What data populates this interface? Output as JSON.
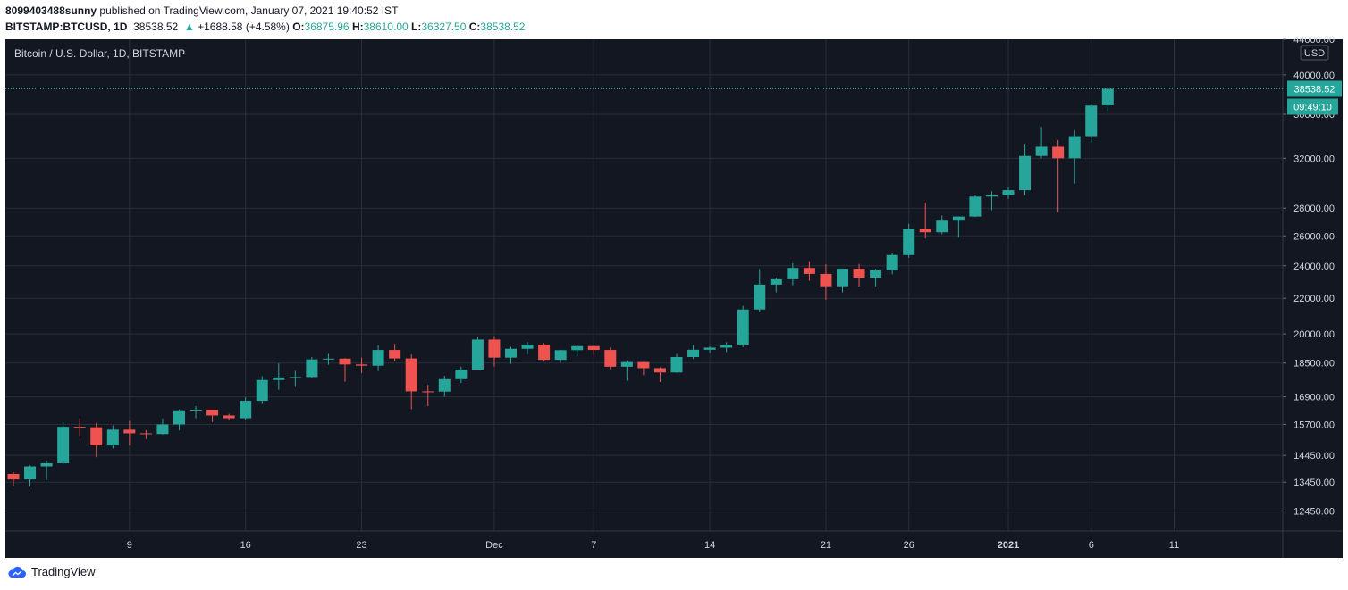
{
  "header": {
    "author": "8099403488sunny",
    "published_text": " published on TradingView.com, January 07, 2021 19:40:52 IST",
    "symbol": "BITSTAMP:BTCUSD, 1D",
    "last": "38538.52",
    "change_arrow": "▲",
    "change": "+1688.58 (+4.58%)",
    "o_label": "O:",
    "o_value": "36875.96",
    "h_label": "H:",
    "h_value": "38610.00",
    "l_label": "L:",
    "l_value": "36327.50",
    "c_label": "C:",
    "c_value": "38538.52"
  },
  "chart_title": "Bitcoin / U.S. Dollar, 1D, BITSTAMP",
  "footer": {
    "brand": "TradingView"
  },
  "colors": {
    "up": "#26a69a",
    "down": "#ef5350",
    "background": "#131722",
    "grid": "#2a2e39",
    "text": "#d1d4dc"
  },
  "chart_data": {
    "type": "candlestick",
    "symbol": "BTCUSD",
    "interval": "1D",
    "currency_label": "USD",
    "last_price_label": "38538.52",
    "countdown_label": "09:49:10",
    "scale": "log",
    "ylim": [
      11800,
      44000
    ],
    "y_ticks": [
      "44000.00",
      "40000.00",
      "36000.00",
      "32000.00",
      "28000.00",
      "26000.00",
      "24000.00",
      "22000.00",
      "20000.00",
      "18500.00",
      "16900.00",
      "15700.00",
      "14450.00",
      "13450.00",
      "12450.00"
    ],
    "x_ticks": [
      {
        "label": "9",
        "date": "2020-11-09",
        "bold": false
      },
      {
        "label": "16",
        "date": "2020-11-16",
        "bold": false
      },
      {
        "label": "23",
        "date": "2020-11-23",
        "bold": false
      },
      {
        "label": "Dec",
        "date": "2020-12-01",
        "bold": false
      },
      {
        "label": "7",
        "date": "2020-12-07",
        "bold": false
      },
      {
        "label": "14",
        "date": "2020-12-14",
        "bold": false
      },
      {
        "label": "21",
        "date": "2020-12-21",
        "bold": false
      },
      {
        "label": "26",
        "date": "2020-12-26",
        "bold": false
      },
      {
        "label": "2021",
        "date": "2021-01-01",
        "bold": true
      },
      {
        "label": "6",
        "date": "2021-01-06",
        "bold": false
      },
      {
        "label": "11",
        "date": "2021-01-11",
        "bold": false
      }
    ],
    "candles": [
      {
        "date": "2020-11-02",
        "o": 13750,
        "h": 13820,
        "l": 13300,
        "c": 13550
      },
      {
        "date": "2020-11-03",
        "o": 13550,
        "h": 14070,
        "l": 13300,
        "c": 14030
      },
      {
        "date": "2020-11-04",
        "o": 14030,
        "h": 14240,
        "l": 13530,
        "c": 14150
      },
      {
        "date": "2020-11-05",
        "o": 14150,
        "h": 15780,
        "l": 14120,
        "c": 15600
      },
      {
        "date": "2020-11-06",
        "o": 15600,
        "h": 15960,
        "l": 15180,
        "c": 15580
      },
      {
        "date": "2020-11-07",
        "o": 15580,
        "h": 15760,
        "l": 14380,
        "c": 14840
      },
      {
        "date": "2020-11-08",
        "o": 14840,
        "h": 15660,
        "l": 14720,
        "c": 15480
      },
      {
        "date": "2020-11-09",
        "o": 15480,
        "h": 15850,
        "l": 14830,
        "c": 15330
      },
      {
        "date": "2020-11-10",
        "o": 15330,
        "h": 15460,
        "l": 15100,
        "c": 15300
      },
      {
        "date": "2020-11-11",
        "o": 15300,
        "h": 15950,
        "l": 15280,
        "c": 15700
      },
      {
        "date": "2020-11-12",
        "o": 15700,
        "h": 16340,
        "l": 15450,
        "c": 16300
      },
      {
        "date": "2020-11-13",
        "o": 16300,
        "h": 16480,
        "l": 15960,
        "c": 16330
      },
      {
        "date": "2020-11-14",
        "o": 16330,
        "h": 16330,
        "l": 15800,
        "c": 16080
      },
      {
        "date": "2020-11-15",
        "o": 16080,
        "h": 16150,
        "l": 15870,
        "c": 15960
      },
      {
        "date": "2020-11-16",
        "o": 15960,
        "h": 16880,
        "l": 15900,
        "c": 16720
      },
      {
        "date": "2020-11-17",
        "o": 16720,
        "h": 17860,
        "l": 16580,
        "c": 17680
      },
      {
        "date": "2020-11-18",
        "o": 17680,
        "h": 18480,
        "l": 17220,
        "c": 17800
      },
      {
        "date": "2020-11-19",
        "o": 17800,
        "h": 18120,
        "l": 17360,
        "c": 17820
      },
      {
        "date": "2020-11-20",
        "o": 17820,
        "h": 18800,
        "l": 17750,
        "c": 18680
      },
      {
        "date": "2020-11-21",
        "o": 18680,
        "h": 18960,
        "l": 18420,
        "c": 18720
      },
      {
        "date": "2020-11-22",
        "o": 18720,
        "h": 18750,
        "l": 17600,
        "c": 18430
      },
      {
        "date": "2020-11-23",
        "o": 18430,
        "h": 18770,
        "l": 18010,
        "c": 18370
      },
      {
        "date": "2020-11-24",
        "o": 18370,
        "h": 19400,
        "l": 18110,
        "c": 19160
      },
      {
        "date": "2020-11-25",
        "o": 19160,
        "h": 19480,
        "l": 18580,
        "c": 18730
      },
      {
        "date": "2020-11-26",
        "o": 18730,
        "h": 18930,
        "l": 16350,
        "c": 17150
      },
      {
        "date": "2020-11-27",
        "o": 17150,
        "h": 17450,
        "l": 16480,
        "c": 17140
      },
      {
        "date": "2020-11-28",
        "o": 17140,
        "h": 17880,
        "l": 16900,
        "c": 17720
      },
      {
        "date": "2020-11-29",
        "o": 17720,
        "h": 18330,
        "l": 17540,
        "c": 18180
      },
      {
        "date": "2020-11-30",
        "o": 18180,
        "h": 19860,
        "l": 18180,
        "c": 19700
      },
      {
        "date": "2020-12-01",
        "o": 19700,
        "h": 19880,
        "l": 18330,
        "c": 18770
      },
      {
        "date": "2020-12-02",
        "o": 18770,
        "h": 19320,
        "l": 18460,
        "c": 19220
      },
      {
        "date": "2020-12-03",
        "o": 19220,
        "h": 19570,
        "l": 18930,
        "c": 19440
      },
      {
        "date": "2020-12-04",
        "o": 19440,
        "h": 19520,
        "l": 18570,
        "c": 18660
      },
      {
        "date": "2020-12-05",
        "o": 18660,
        "h": 19170,
        "l": 18520,
        "c": 19150
      },
      {
        "date": "2020-12-06",
        "o": 19150,
        "h": 19420,
        "l": 18850,
        "c": 19360
      },
      {
        "date": "2020-12-07",
        "o": 19360,
        "h": 19420,
        "l": 18910,
        "c": 19160
      },
      {
        "date": "2020-12-08",
        "o": 19160,
        "h": 19290,
        "l": 18200,
        "c": 18320
      },
      {
        "date": "2020-12-09",
        "o": 18320,
        "h": 18640,
        "l": 17650,
        "c": 18550
      },
      {
        "date": "2020-12-10",
        "o": 18550,
        "h": 18560,
        "l": 17910,
        "c": 18250
      },
      {
        "date": "2020-12-11",
        "o": 18250,
        "h": 18290,
        "l": 17580,
        "c": 18040
      },
      {
        "date": "2020-12-12",
        "o": 18040,
        "h": 18950,
        "l": 18020,
        "c": 18800
      },
      {
        "date": "2020-12-13",
        "o": 18800,
        "h": 19410,
        "l": 18700,
        "c": 19170
      },
      {
        "date": "2020-12-14",
        "o": 19170,
        "h": 19340,
        "l": 19000,
        "c": 19280
      },
      {
        "date": "2020-12-15",
        "o": 19280,
        "h": 19560,
        "l": 19050,
        "c": 19440
      },
      {
        "date": "2020-12-16",
        "o": 19440,
        "h": 21560,
        "l": 19300,
        "c": 21350
      },
      {
        "date": "2020-12-17",
        "o": 21350,
        "h": 23800,
        "l": 21230,
        "c": 22820
      },
      {
        "date": "2020-12-18",
        "o": 22820,
        "h": 23250,
        "l": 22350,
        "c": 23150
      },
      {
        "date": "2020-12-19",
        "o": 23150,
        "h": 24170,
        "l": 22780,
        "c": 23860
      },
      {
        "date": "2020-12-20",
        "o": 23860,
        "h": 24300,
        "l": 23060,
        "c": 23480
      },
      {
        "date": "2020-12-21",
        "o": 23480,
        "h": 24100,
        "l": 21910,
        "c": 22720
      },
      {
        "date": "2020-12-22",
        "o": 22720,
        "h": 23830,
        "l": 22350,
        "c": 23810
      },
      {
        "date": "2020-12-23",
        "o": 23810,
        "h": 24120,
        "l": 22700,
        "c": 23240
      },
      {
        "date": "2020-12-24",
        "o": 23240,
        "h": 23790,
        "l": 22720,
        "c": 23710
      },
      {
        "date": "2020-12-25",
        "o": 23710,
        "h": 24800,
        "l": 23460,
        "c": 24700
      },
      {
        "date": "2020-12-26",
        "o": 24700,
        "h": 26860,
        "l": 24520,
        "c": 26500
      },
      {
        "date": "2020-12-27",
        "o": 26500,
        "h": 28420,
        "l": 25820,
        "c": 26250
      },
      {
        "date": "2020-12-28",
        "o": 26250,
        "h": 27450,
        "l": 26110,
        "c": 27080
      },
      {
        "date": "2020-12-29",
        "o": 27080,
        "h": 27390,
        "l": 25880,
        "c": 27380
      },
      {
        "date": "2020-12-30",
        "o": 27380,
        "h": 28990,
        "l": 27350,
        "c": 28880
      },
      {
        "date": "2020-12-31",
        "o": 28880,
        "h": 29300,
        "l": 27850,
        "c": 28990
      },
      {
        "date": "2021-01-01",
        "o": 28990,
        "h": 29610,
        "l": 28700,
        "c": 29380
      },
      {
        "date": "2021-01-02",
        "o": 29380,
        "h": 33270,
        "l": 28980,
        "c": 32200
      },
      {
        "date": "2021-01-03",
        "o": 32200,
        "h": 34800,
        "l": 32000,
        "c": 33000
      },
      {
        "date": "2021-01-04",
        "o": 33000,
        "h": 33600,
        "l": 27700,
        "c": 32000
      },
      {
        "date": "2021-01-05",
        "o": 32000,
        "h": 34500,
        "l": 29900,
        "c": 33950
      },
      {
        "date": "2021-01-06",
        "o": 33950,
        "h": 36940,
        "l": 33400,
        "c": 36850
      },
      {
        "date": "2021-01-07",
        "o": 36876,
        "h": 38610,
        "l": 36328,
        "c": 38539
      }
    ]
  }
}
